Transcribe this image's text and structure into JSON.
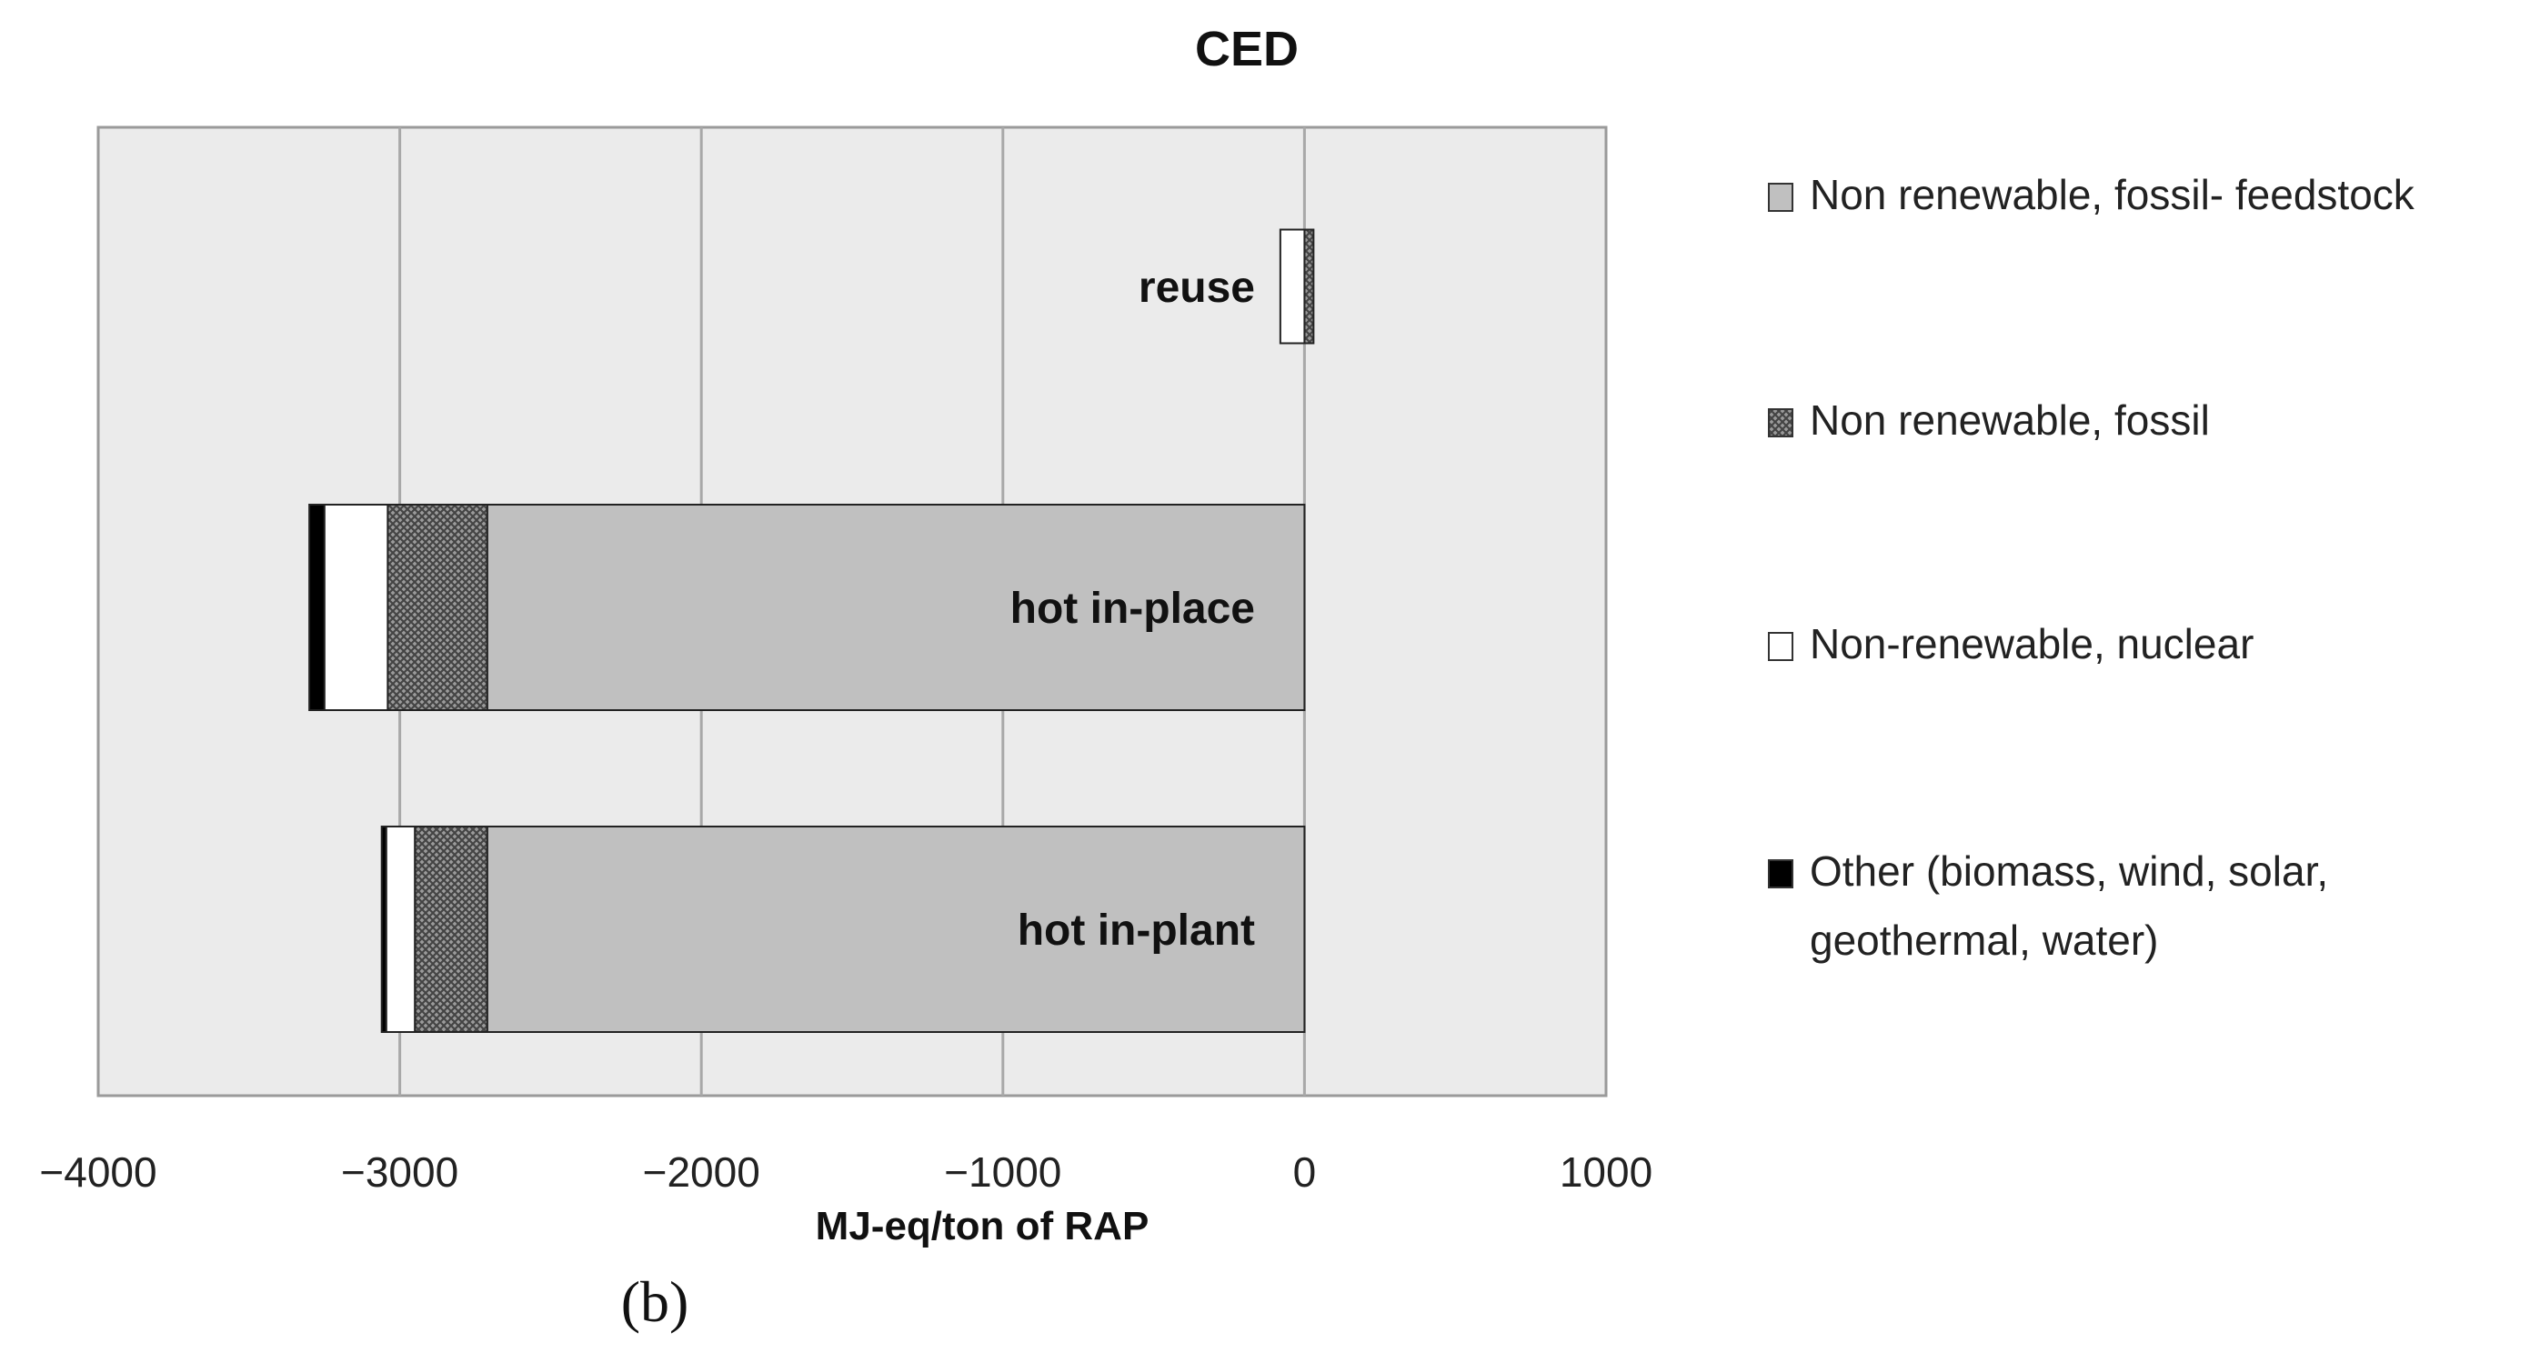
{
  "chart_data": {
    "type": "bar",
    "orientation": "horizontal",
    "stacked": true,
    "title": "CED",
    "xlabel": "MJ-eq/ton of RAP",
    "ylabel": "",
    "xlim": [
      -4000,
      1000
    ],
    "xticks": [
      "−4000",
      "−3000",
      "−2000",
      "−1000",
      "0",
      "1000"
    ],
    "xtick_values": [
      -4000,
      -3000,
      -2000,
      -1000,
      0,
      1000
    ],
    "grid": true,
    "legend_position": "right",
    "categories": [
      "reuse",
      "hot in-place",
      "hot in-plant"
    ],
    "series": [
      {
        "name": "Non renewable, fossil- feedstock",
        "pattern": "solid-gray",
        "color": "#c0c0c0",
        "values": [
          0,
          -2710,
          -2710
        ]
      },
      {
        "name": "Non renewable, fossil",
        "pattern": "crosshatch",
        "color": "#777777",
        "values": [
          30,
          -330,
          -240
        ]
      },
      {
        "name": "Non-renewable, nuclear",
        "pattern": "white",
        "color": "#ffffff",
        "values": [
          -80,
          -210,
          -95
        ]
      },
      {
        "name": "Other (biomass, wind, solar, geothermal, water)",
        "pattern": "black",
        "color": "#000000",
        "values": [
          0,
          -50,
          -15
        ]
      }
    ]
  },
  "caption": "(b)"
}
